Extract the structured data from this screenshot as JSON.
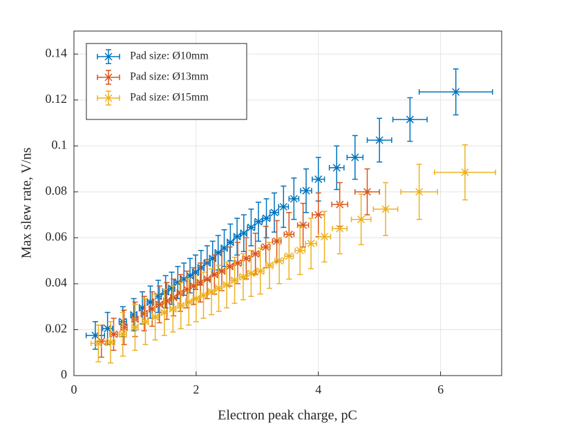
{
  "chart_data": {
    "type": "scatter",
    "xlabel": "Electron peak charge, pC",
    "ylabel": "Max slew rate, V/ns",
    "xlim": [
      0,
      7
    ],
    "xticks": [
      0,
      2,
      4,
      6
    ],
    "ylim": [
      0,
      0.15
    ],
    "yticks": [
      0,
      0.02,
      0.04,
      0.06,
      0.08,
      0.1,
      0.12,
      0.14
    ],
    "grid": true,
    "legend": "upper left",
    "series": [
      {
        "name": "Pad size: Ø10mm",
        "color": "#0072BD",
        "x": [
          0.35,
          0.55,
          0.8,
          0.98,
          1.12,
          1.25,
          1.38,
          1.5,
          1.6,
          1.7,
          1.8,
          1.9,
          1.99,
          2.08,
          2.18,
          2.27,
          2.36,
          2.46,
          2.56,
          2.67,
          2.78,
          2.9,
          3.02,
          3.15,
          3.28,
          3.43,
          3.6,
          3.8,
          4.0,
          4.3,
          4.6,
          5.0,
          5.5,
          6.25
        ],
        "values": [
          0.0175,
          0.0205,
          0.0235,
          0.0265,
          0.0295,
          0.032,
          0.0345,
          0.0365,
          0.038,
          0.0405,
          0.042,
          0.0435,
          0.045,
          0.047,
          0.049,
          0.051,
          0.0535,
          0.0555,
          0.058,
          0.0605,
          0.062,
          0.0645,
          0.067,
          0.0685,
          0.071,
          0.0735,
          0.077,
          0.0805,
          0.0855,
          0.0905,
          0.095,
          0.1025,
          0.1115,
          0.1235
        ],
        "xerr": [
          0.15,
          0.08,
          0.06,
          0.05,
          0.05,
          0.05,
          0.05,
          0.05,
          0.05,
          0.05,
          0.05,
          0.05,
          0.05,
          0.05,
          0.05,
          0.05,
          0.05,
          0.05,
          0.05,
          0.05,
          0.05,
          0.06,
          0.06,
          0.06,
          0.07,
          0.08,
          0.08,
          0.09,
          0.1,
          0.12,
          0.13,
          0.2,
          0.28,
          0.6
        ],
        "yerr": [
          0.006,
          0.007,
          0.0065,
          0.007,
          0.007,
          0.007,
          0.007,
          0.007,
          0.007,
          0.007,
          0.007,
          0.0075,
          0.0075,
          0.0075,
          0.0075,
          0.0075,
          0.0075,
          0.008,
          0.008,
          0.008,
          0.008,
          0.008,
          0.0085,
          0.0085,
          0.0085,
          0.009,
          0.009,
          0.0095,
          0.0095,
          0.0095,
          0.0095,
          0.0095,
          0.0095,
          0.01
        ]
      },
      {
        "name": "Pad size: Ø13mm",
        "color": "#D95319",
        "x": [
          0.45,
          0.65,
          0.82,
          1.0,
          1.15,
          1.28,
          1.4,
          1.52,
          1.63,
          1.74,
          1.85,
          1.96,
          2.07,
          2.18,
          2.3,
          2.42,
          2.55,
          2.68,
          2.82,
          2.97,
          3.14,
          3.32,
          3.52,
          3.75,
          4.0,
          4.35,
          4.8
        ],
        "values": [
          0.015,
          0.018,
          0.021,
          0.0245,
          0.027,
          0.029,
          0.031,
          0.0325,
          0.034,
          0.036,
          0.0375,
          0.039,
          0.0405,
          0.042,
          0.044,
          0.0455,
          0.0475,
          0.049,
          0.051,
          0.053,
          0.056,
          0.0585,
          0.0615,
          0.0655,
          0.07,
          0.0745,
          0.08
        ],
        "xerr": [
          0.1,
          0.06,
          0.05,
          0.05,
          0.05,
          0.05,
          0.05,
          0.05,
          0.05,
          0.05,
          0.05,
          0.05,
          0.05,
          0.05,
          0.05,
          0.05,
          0.05,
          0.06,
          0.06,
          0.06,
          0.07,
          0.07,
          0.08,
          0.09,
          0.1,
          0.13,
          0.2
        ],
        "yerr": [
          0.007,
          0.007,
          0.0075,
          0.0075,
          0.0075,
          0.0075,
          0.008,
          0.008,
          0.008,
          0.008,
          0.008,
          0.008,
          0.0085,
          0.0085,
          0.0085,
          0.0085,
          0.0085,
          0.009,
          0.009,
          0.009,
          0.009,
          0.009,
          0.0095,
          0.0095,
          0.0095,
          0.0095,
          0.01
        ]
      },
      {
        "name": "Pad size: Ø15mm",
        "color": "#EDB120",
        "x": [
          0.4,
          0.6,
          0.8,
          1.0,
          1.17,
          1.33,
          1.48,
          1.62,
          1.75,
          1.88,
          2.0,
          2.12,
          2.25,
          2.37,
          2.5,
          2.63,
          2.77,
          2.9,
          3.05,
          3.2,
          3.36,
          3.52,
          3.7,
          3.88,
          4.1,
          4.35,
          4.7,
          5.1,
          5.65,
          6.4
        ],
        "values": [
          0.014,
          0.0145,
          0.018,
          0.021,
          0.0235,
          0.0255,
          0.0275,
          0.029,
          0.0305,
          0.032,
          0.0335,
          0.035,
          0.0365,
          0.038,
          0.0395,
          0.0415,
          0.043,
          0.0445,
          0.0455,
          0.048,
          0.05,
          0.052,
          0.0545,
          0.0575,
          0.0605,
          0.064,
          0.068,
          0.0725,
          0.08,
          0.0885
        ],
        "xerr": [
          0.12,
          0.07,
          0.06,
          0.05,
          0.05,
          0.05,
          0.05,
          0.05,
          0.05,
          0.05,
          0.05,
          0.05,
          0.05,
          0.05,
          0.05,
          0.05,
          0.06,
          0.06,
          0.06,
          0.06,
          0.07,
          0.07,
          0.08,
          0.09,
          0.1,
          0.12,
          0.16,
          0.2,
          0.3,
          0.5
        ],
        "yerr": [
          0.008,
          0.009,
          0.0095,
          0.01,
          0.01,
          0.01,
          0.01,
          0.01,
          0.01,
          0.01,
          0.01,
          0.01,
          0.01,
          0.01,
          0.01,
          0.01,
          0.01,
          0.01,
          0.01,
          0.01,
          0.01,
          0.01,
          0.0105,
          0.011,
          0.011,
          0.011,
          0.011,
          0.0115,
          0.012,
          0.012
        ]
      }
    ]
  }
}
